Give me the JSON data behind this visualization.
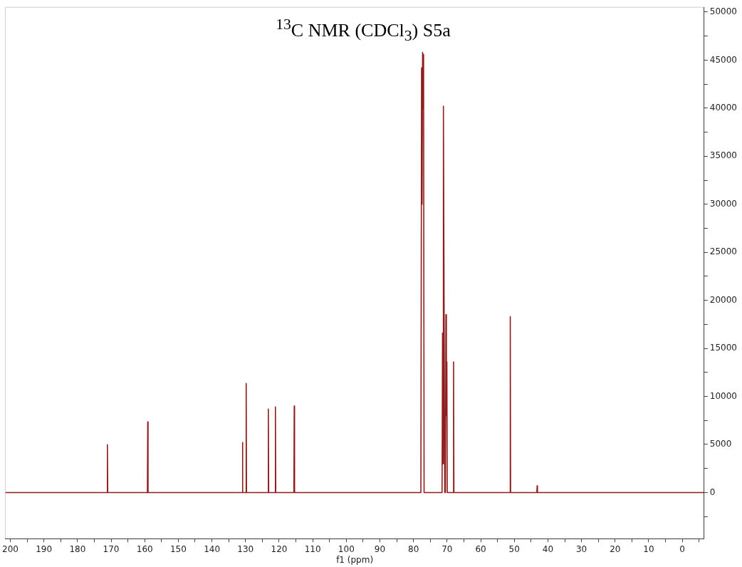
{
  "chart_data": {
    "type": "line",
    "title": "$^{13}$C NMR (CDCl$_{3}$) S5a",
    "xlabel": "f1 (ppm)",
    "color": "#8f1d1d",
    "x": [
      201.5,
      171.2,
      171.1,
      171.0,
      159.2,
      159.1,
      159.0,
      131.0,
      130.9,
      130.8,
      129.9,
      129.8,
      129.7,
      123.3,
      123.2,
      123.1,
      121.2,
      121.1,
      121.0,
      115.6,
      115.5,
      115.4,
      77.8,
      77.6,
      77.45,
      77.3,
      77.15,
      77.0,
      76.85,
      71.5,
      71.36,
      71.23,
      71.1,
      70.7,
      70.5,
      70.35,
      70.21,
      70.07,
      69.95,
      68.17,
      68.07,
      67.97,
      51.3,
      51.2,
      51.1,
      43.3,
      43.2,
      43.1,
      -6.5
    ],
    "values": [
      0,
      0,
      4970,
      0,
      0,
      7350,
      0,
      0,
      5200,
      0,
      0,
      11350,
      0,
      0,
      8680,
      0,
      0,
      8900,
      0,
      0,
      9000,
      0,
      0,
      44200,
      30000,
      45800,
      40000,
      45600,
      0,
      0,
      16600,
      3000,
      40200,
      0,
      0,
      18500,
      8000,
      13600,
      0,
      0,
      13600,
      0,
      0,
      18300,
      0,
      0,
      700,
      0,
      0
    ],
    "xlim": [
      201.5,
      -6.5
    ],
    "xticks": [
      200,
      {
        "value": 195,
        "label": null
      },
      190,
      {
        "value": 185,
        "label": null
      },
      180,
      {
        "value": 175,
        "label": null
      },
      170,
      {
        "value": 165,
        "label": null
      },
      160,
      {
        "value": 155,
        "label": null
      },
      150,
      {
        "value": 145,
        "label": null
      },
      140,
      {
        "value": 135,
        "label": null
      },
      130,
      {
        "value": 125,
        "label": null
      },
      120,
      {
        "value": 115,
        "label": null
      },
      110,
      {
        "value": 105,
        "label": null
      },
      100,
      {
        "value": 95,
        "label": null
      },
      90,
      {
        "value": 85,
        "label": null
      },
      80,
      {
        "value": 75,
        "label": null
      },
      70,
      {
        "value": 65,
        "label": null
      },
      60,
      {
        "value": 55,
        "label": null
      },
      50,
      {
        "value": 45,
        "label": null
      },
      40,
      {
        "value": 35,
        "label": null
      },
      30,
      {
        "value": 25,
        "label": null
      },
      20,
      {
        "value": 15,
        "label": null
      },
      10,
      {
        "value": 5,
        "label": null
      },
      0,
      {
        "value": -5,
        "label": null
      }
    ],
    "ylim": [
      -4800,
      50500
    ],
    "yticks": [
      {
        "value": -2500,
        "label": null
      },
      0,
      {
        "value": 2500,
        "label": null
      },
      5000,
      {
        "value": 7500,
        "label": null
      },
      10000,
      {
        "value": 12500,
        "label": null
      },
      15000,
      {
        "value": 17500,
        "label": null
      },
      20000,
      {
        "value": 22500,
        "label": null
      },
      25000,
      {
        "value": 27500,
        "label": null
      },
      30000,
      {
        "value": 32500,
        "label": null
      },
      35000,
      {
        "value": 37500,
        "label": null
      },
      40000,
      {
        "value": 42500,
        "label": null
      },
      45000,
      {
        "value": 47500,
        "label": null
      },
      50000
    ],
    "grid": false,
    "legend": false,
    "marker": "none",
    "line_style": "solid"
  }
}
